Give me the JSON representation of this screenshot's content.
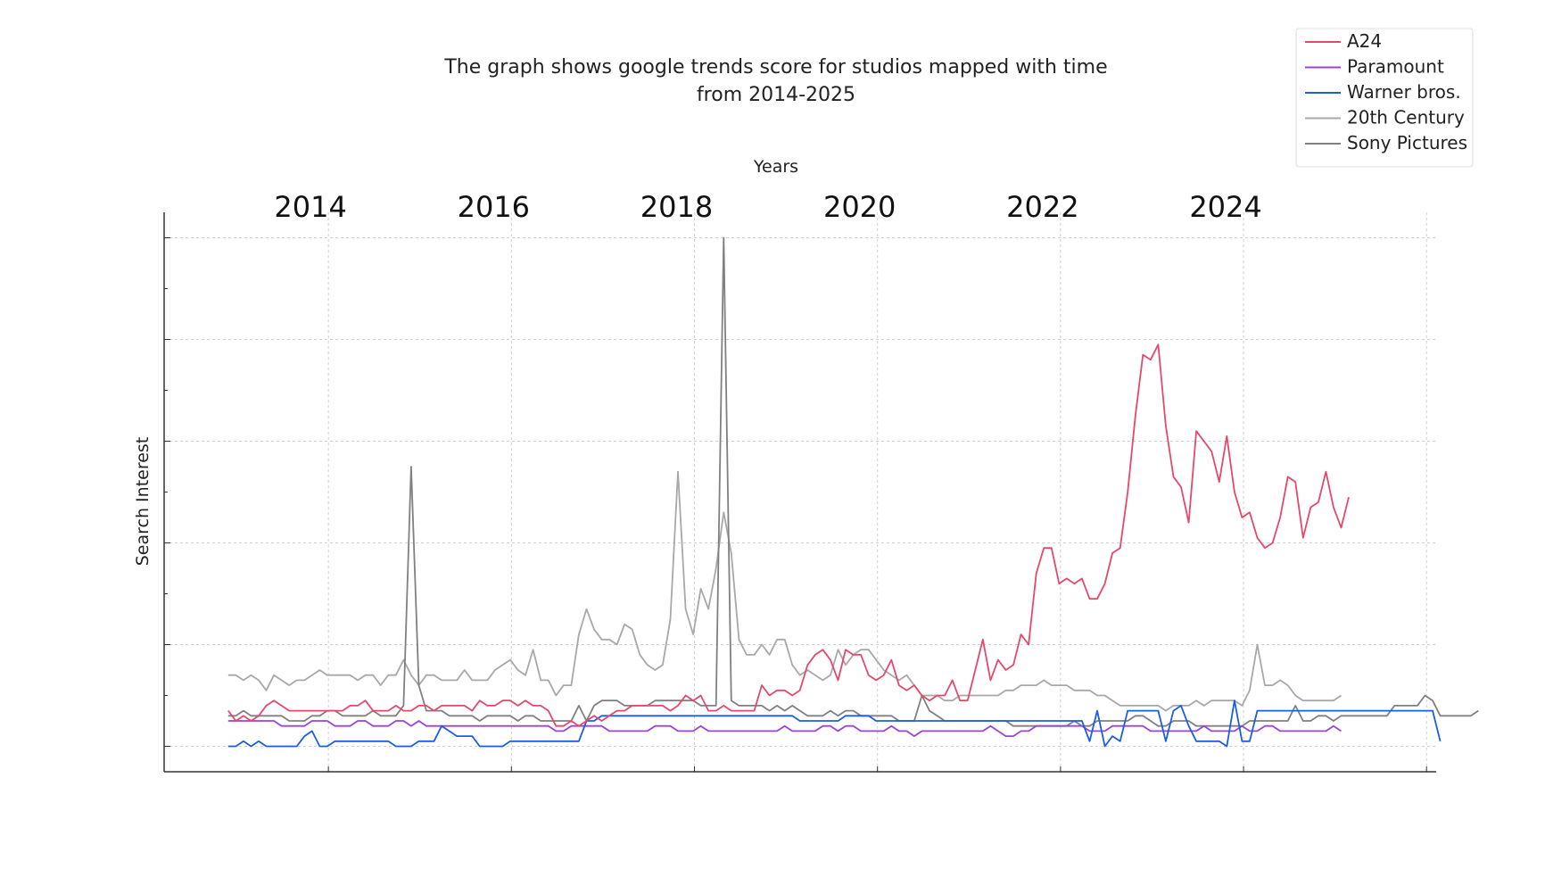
{
  "chart_data": {
    "type": "line",
    "title_line1": "The graph shows google trends score for studios mapped with time",
    "title_line2": "from 2014-2025",
    "xlabel": "Years",
    "ylabel": "Search Interest",
    "x_tick_labels": [
      "2014",
      "2016",
      "2018",
      "2020",
      "2022",
      "2024"
    ],
    "x_tick_values": [
      2014,
      2016,
      2018,
      2020,
      2022,
      2024
    ],
    "xlim": [
      2012.4,
      2026.3
    ],
    "ylim": [
      -5,
      105
    ],
    "y_ticks": [
      0,
      20,
      40,
      60,
      80,
      100
    ],
    "y_minor_ticks": [
      10,
      30,
      50,
      70,
      90
    ],
    "grid": true,
    "legend_position": "top-right",
    "x_start": 2013.1,
    "x_step": 0.0833,
    "series": [
      {
        "name": "A24",
        "color": "#e2496b",
        "values": [
          7,
          5,
          6,
          5,
          6,
          8,
          9,
          8,
          7,
          7,
          7,
          7,
          7,
          7,
          7,
          7,
          8,
          8,
          9,
          7,
          7,
          7,
          8,
          7,
          7,
          8,
          8,
          7,
          8,
          8,
          8,
          8,
          7,
          9,
          8,
          8,
          9,
          9,
          8,
          9,
          8,
          8,
          7,
          4,
          4,
          5,
          4,
          5,
          6,
          5,
          6,
          7,
          7,
          8,
          8,
          8,
          8,
          8,
          7,
          8,
          10,
          9,
          10,
          7,
          7,
          8,
          7,
          7,
          7,
          7,
          12,
          10,
          11,
          11,
          10,
          11,
          16,
          18,
          19,
          17,
          13,
          19,
          18,
          18,
          14,
          13,
          14,
          17,
          12,
          11,
          12,
          10,
          9,
          10,
          10,
          13,
          9,
          9,
          15,
          21,
          13,
          17,
          15,
          16,
          22,
          20,
          34,
          39,
          39,
          32,
          33,
          32,
          33,
          29,
          29,
          32,
          38,
          39,
          50,
          65,
          77,
          76,
          79,
          63,
          53,
          51,
          44,
          62,
          60,
          58,
          52,
          61,
          50,
          45,
          46,
          41,
          39,
          40,
          45,
          53,
          52,
          41,
          47,
          48,
          54,
          47,
          43,
          49
        ]
      },
      {
        "name": "Paramount",
        "color": "#9b43d8",
        "values": [
          5,
          5,
          5,
          5,
          5,
          5,
          5,
          4,
          4,
          4,
          4,
          5,
          5,
          5,
          4,
          4,
          4,
          5,
          5,
          4,
          4,
          4,
          5,
          5,
          4,
          5,
          4,
          4,
          4,
          4,
          4,
          4,
          4,
          4,
          4,
          4,
          4,
          4,
          4,
          4,
          4,
          4,
          4,
          3,
          3,
          4,
          4,
          4,
          4,
          4,
          3,
          3,
          3,
          3,
          3,
          3,
          4,
          4,
          4,
          3,
          3,
          3,
          4,
          3,
          3,
          3,
          3,
          3,
          3,
          3,
          3,
          3,
          3,
          4,
          3,
          3,
          3,
          3,
          4,
          4,
          3,
          4,
          4,
          3,
          3,
          3,
          3,
          4,
          3,
          3,
          2,
          3,
          3,
          3,
          3,
          3,
          3,
          3,
          3,
          3,
          4,
          3,
          2,
          2,
          3,
          3,
          4,
          4,
          4,
          4,
          4,
          4,
          4,
          3,
          3,
          3,
          4,
          4,
          4,
          4,
          4,
          3,
          3,
          3,
          3,
          3,
          3,
          3,
          4,
          3,
          3,
          3,
          3,
          4,
          3,
          3,
          4,
          4,
          3,
          3,
          3,
          3,
          3,
          3,
          3,
          4,
          3
        ]
      },
      {
        "name": "Warner bros.",
        "color": "#1c5ee0",
        "values": [
          0,
          0,
          1,
          0,
          1,
          0,
          0,
          0,
          0,
          0,
          2,
          3,
          0,
          0,
          1,
          1,
          1,
          1,
          1,
          1,
          1,
          1,
          0,
          0,
          0,
          1,
          1,
          1,
          4,
          3,
          2,
          2,
          2,
          0,
          0,
          0,
          0,
          1,
          1,
          1,
          1,
          1,
          1,
          1,
          1,
          1,
          1,
          5,
          5,
          6,
          6,
          6,
          6,
          6,
          6,
          6,
          6,
          6,
          6,
          6,
          6,
          6,
          6,
          6,
          6,
          6,
          6,
          6,
          6,
          6,
          6,
          6,
          6,
          6,
          6,
          5,
          5,
          5,
          5,
          5,
          5,
          6,
          6,
          6,
          6,
          5,
          5,
          5,
          5,
          5,
          5,
          5,
          5,
          5,
          5,
          5,
          5,
          5,
          5,
          5,
          5,
          5,
          5,
          5,
          5,
          5,
          5,
          5,
          5,
          5,
          5,
          5,
          5,
          1,
          7,
          0,
          2,
          1,
          7,
          7,
          7,
          7,
          7,
          1,
          7,
          8,
          4,
          1,
          1,
          1,
          1,
          0,
          9,
          1,
          1,
          7,
          7,
          7,
          7,
          7,
          7,
          7,
          7,
          7,
          7,
          7,
          7,
          7,
          7,
          7,
          7,
          7,
          7,
          7,
          7,
          7,
          7,
          7,
          7,
          1
        ]
      },
      {
        "name": "20th Century",
        "color": "#a8a8a8",
        "values": [
          14,
          14,
          13,
          14,
          13,
          11,
          14,
          13,
          12,
          13,
          13,
          14,
          15,
          14,
          14,
          14,
          14,
          13,
          14,
          14,
          12,
          14,
          14,
          17,
          14,
          12,
          14,
          14,
          13,
          13,
          13,
          15,
          13,
          13,
          13,
          15,
          16,
          17,
          15,
          14,
          19,
          13,
          13,
          10,
          12,
          12,
          22,
          27,
          23,
          21,
          21,
          20,
          24,
          23,
          18,
          16,
          15,
          16,
          25,
          54,
          27,
          22,
          31,
          27,
          35,
          46,
          38,
          21,
          18,
          18,
          20,
          18,
          21,
          21,
          16,
          14,
          15,
          14,
          13,
          14,
          19,
          16,
          18,
          19,
          19,
          17,
          15,
          14,
          13,
          14,
          12,
          10,
          10,
          10,
          9,
          9,
          10,
          10,
          10,
          10,
          10,
          10,
          11,
          11,
          12,
          12,
          12,
          13,
          12,
          12,
          12,
          11,
          11,
          11,
          10,
          10,
          9,
          8,
          8,
          8,
          8,
          8,
          8,
          7,
          8,
          8,
          8,
          9,
          8,
          9,
          9,
          9,
          9,
          8,
          11,
          20,
          12,
          12,
          13,
          12,
          10,
          9,
          9,
          9,
          9,
          9,
          10
        ]
      },
      {
        "name": "Sony Pictures",
        "color": "#808080",
        "values": [
          6,
          6,
          7,
          6,
          6,
          6,
          6,
          6,
          5,
          5,
          5,
          6,
          6,
          7,
          7,
          6,
          6,
          6,
          6,
          7,
          6,
          6,
          6,
          8,
          55,
          12,
          7,
          7,
          7,
          6,
          6,
          6,
          6,
          5,
          6,
          6,
          6,
          6,
          5,
          6,
          6,
          5,
          5,
          5,
          5,
          5,
          8,
          5,
          8,
          9,
          9,
          9,
          8,
          8,
          8,
          8,
          9,
          9,
          9,
          9,
          9,
          9,
          8,
          8,
          8,
          100,
          9,
          8,
          8,
          8,
          8,
          7,
          8,
          7,
          8,
          7,
          6,
          6,
          6,
          7,
          6,
          7,
          7,
          6,
          6,
          6,
          6,
          6,
          5,
          5,
          5,
          10,
          7,
          6,
          5,
          5,
          5,
          5,
          5,
          5,
          5,
          5,
          5,
          4,
          4,
          4,
          4,
          4,
          4,
          4,
          4,
          5,
          4,
          4,
          5,
          5,
          5,
          5,
          5,
          6,
          6,
          5,
          4,
          4,
          5,
          5,
          5,
          4,
          4,
          4,
          4,
          4,
          4,
          4,
          5,
          5,
          5,
          5,
          5,
          5,
          8,
          5,
          5,
          6,
          6,
          5,
          6,
          6,
          6,
          6,
          6,
          6,
          6,
          8,
          8,
          8,
          8,
          10,
          9,
          6,
          6,
          6,
          6,
          6,
          7
        ]
      }
    ]
  }
}
